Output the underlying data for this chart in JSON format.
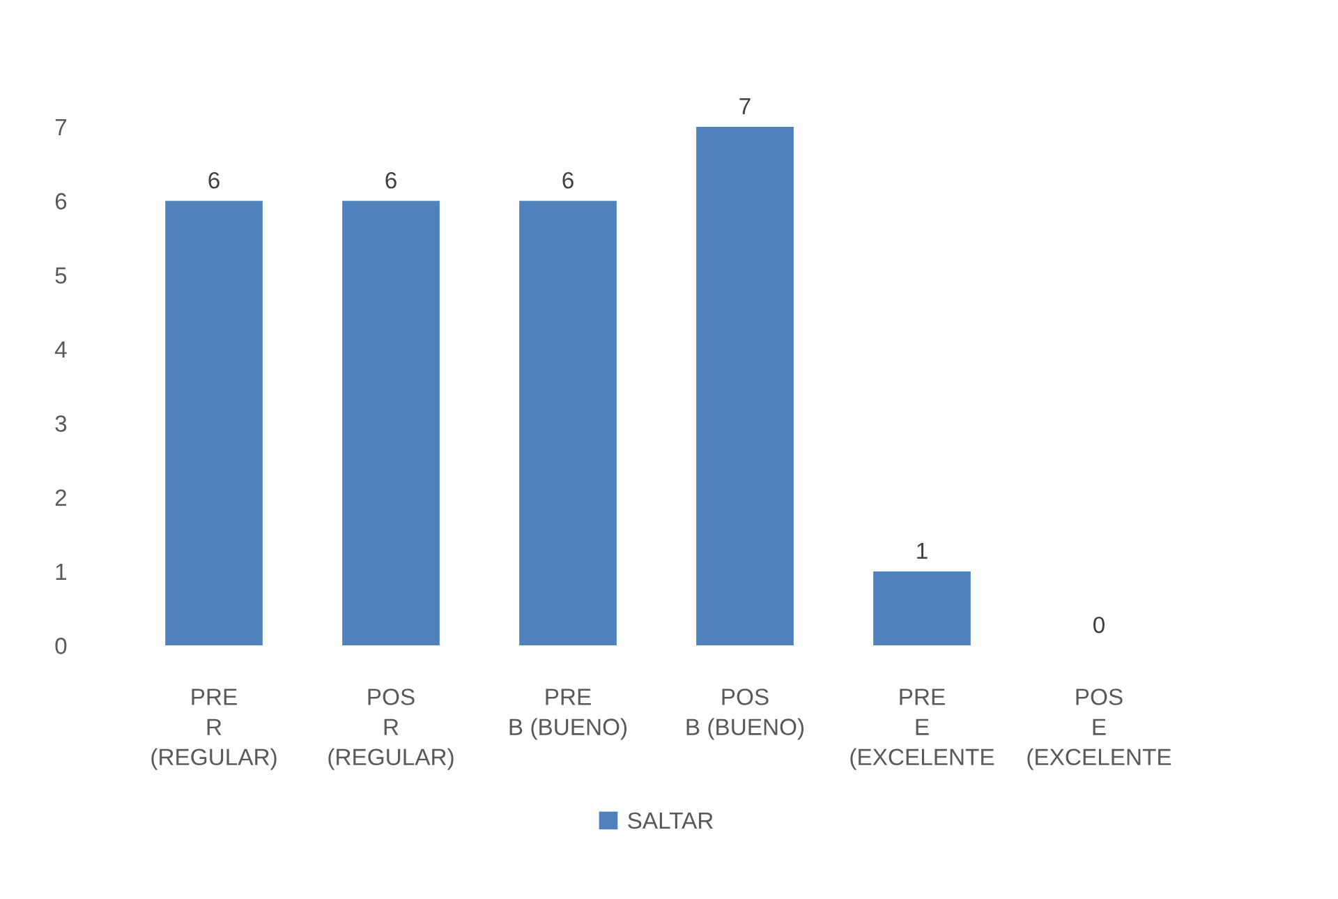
{
  "chart_data": {
    "type": "bar",
    "categories": [
      "PRE\nR\n(REGULAR)",
      "POS\nR\n(REGULAR)",
      "PRE\nB (BUENO)",
      "POS\nB (BUENO)",
      "PRE\nE\n(EXCELENTE",
      "POS\nE\n(EXCELENTE"
    ],
    "series": [
      {
        "name": "SALTAR",
        "color": "#4f81bd",
        "values": [
          6,
          6,
          6,
          7,
          1,
          0
        ]
      }
    ],
    "ylim": [
      0,
      7
    ],
    "yticks": [
      0,
      1,
      2,
      3,
      4,
      5,
      6,
      7
    ],
    "data_labels": true,
    "legend": "bottom"
  }
}
